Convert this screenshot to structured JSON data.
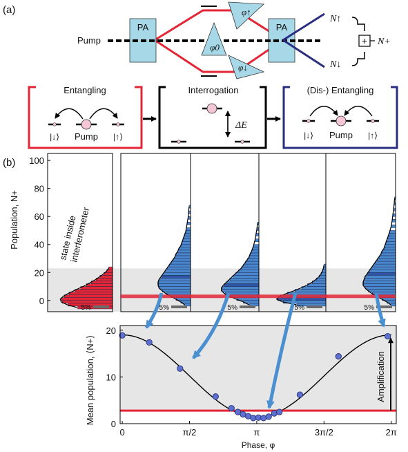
{
  "panel_a": {
    "label": "(a)",
    "pa_left": "PA",
    "pa_right": "PA",
    "pump_label": "Pump",
    "phi0": "φ0",
    "phi_up": "φ↑",
    "phi_down": "φ↓",
    "n_up": "N↑",
    "n_down": "N↓",
    "n_plus": "N+",
    "plus_sign": "+",
    "boxes": {
      "entangling": {
        "title": "Entangling",
        "left_state": "|↓⟩",
        "pump": "Pump",
        "right_state": "|↑⟩"
      },
      "interrogation": {
        "title": "Interrogation",
        "delta_e": "ΔE"
      },
      "disentangling": {
        "title": "(Dis-) Entangling",
        "left_state": "|↓⟩",
        "pump": "Pump",
        "right_state": "|↑⟩"
      }
    },
    "colors": {
      "red": "#e32636",
      "navy": "#2a2e80",
      "pa_fill": "#a6d8e8",
      "black": "#000000"
    }
  },
  "panel_b": {
    "label": "(b)",
    "scale_label": "5%",
    "annotation": [
      "state inside",
      "interferometer"
    ],
    "amplification": "Amplification",
    "colors": {
      "hist_blue": "#4a86cc",
      "hist_dark": "#2f55a4",
      "hist_red": "#e32636",
      "grey_band": "#e6e6e6",
      "arrow_blue": "#4a8fd0",
      "point": "#5d6fcf"
    }
  },
  "chart_data": [
    {
      "type": "bar",
      "orientation": "horizontal",
      "ylabel": "Population, N+",
      "ylim": [
        -8,
        105
      ],
      "yticks": [
        0,
        20,
        40,
        60,
        80,
        100
      ],
      "panels": [
        {
          "name": "state inside interferometer",
          "color": "#e32636",
          "bins": [
            {
              "n": -5,
              "p": 3.6
            },
            {
              "n": -3,
              "p": 4.6
            },
            {
              "n": -1,
              "p": 5.2
            },
            {
              "n": 1,
              "p": 5.3
            },
            {
              "n": 3,
              "p": 5.0
            },
            {
              "n": 5,
              "p": 4.5
            },
            {
              "n": 7,
              "p": 3.9
            },
            {
              "n": 9,
              "p": 3.3
            },
            {
              "n": 11,
              "p": 2.7
            },
            {
              "n": 13,
              "p": 2.2
            },
            {
              "n": 15,
              "p": 1.7
            },
            {
              "n": 17,
              "p": 1.3
            },
            {
              "n": 19,
              "p": 0.9
            },
            {
              "n": 21,
              "p": 0.6
            },
            {
              "n": 23,
              "p": 0.4
            }
          ],
          "mean": 3
        },
        {
          "name": "phase 0.1pi",
          "color": "#4a86cc",
          "bins": [
            {
              "n": -3,
              "p": 0.6
            },
            {
              "n": -1,
              "p": 1.0
            },
            {
              "n": 1,
              "p": 1.5
            },
            {
              "n": 3,
              "p": 2.0
            },
            {
              "n": 5,
              "p": 2.5
            },
            {
              "n": 7,
              "p": 2.9
            },
            {
              "n": 9,
              "p": 3.2
            },
            {
              "n": 11,
              "p": 3.3
            },
            {
              "n": 13,
              "p": 3.3
            },
            {
              "n": 15,
              "p": 3.2
            },
            {
              "n": 17,
              "p": 3.0
            },
            {
              "n": 19,
              "p": 2.8
            },
            {
              "n": 21,
              "p": 2.6
            },
            {
              "n": 23,
              "p": 2.4
            },
            {
              "n": 25,
              "p": 2.2
            },
            {
              "n": 27,
              "p": 2.0
            },
            {
              "n": 29,
              "p": 1.8
            },
            {
              "n": 31,
              "p": 1.6
            },
            {
              "n": 33,
              "p": 1.5
            },
            {
              "n": 35,
              "p": 1.3
            },
            {
              "n": 37,
              "p": 1.2
            },
            {
              "n": 39,
              "p": 1.0
            },
            {
              "n": 41,
              "p": 0.9
            },
            {
              "n": 43,
              "p": 0.8
            },
            {
              "n": 45,
              "p": 0.7
            },
            {
              "n": 47,
              "p": 0.6
            },
            {
              "n": 49,
              "p": 0.5
            },
            {
              "n": 51,
              "p": 0.45
            },
            {
              "n": 55,
              "p": 0.35
            },
            {
              "n": 59,
              "p": 0.25
            },
            {
              "n": 63,
              "p": 0.2
            },
            {
              "n": 67,
              "p": 0.15
            }
          ],
          "mean": 17
        },
        {
          "name": "phase 0.4pi",
          "color": "#4a86cc",
          "bins": [
            {
              "n": -3,
              "p": 1.0
            },
            {
              "n": -1,
              "p": 1.6
            },
            {
              "n": 1,
              "p": 2.3
            },
            {
              "n": 3,
              "p": 3.0
            },
            {
              "n": 5,
              "p": 3.5
            },
            {
              "n": 7,
              "p": 3.8
            },
            {
              "n": 9,
              "p": 3.8
            },
            {
              "n": 11,
              "p": 3.6
            },
            {
              "n": 13,
              "p": 3.3
            },
            {
              "n": 15,
              "p": 3.0
            },
            {
              "n": 17,
              "p": 2.7
            },
            {
              "n": 19,
              "p": 2.4
            },
            {
              "n": 21,
              "p": 2.1
            },
            {
              "n": 23,
              "p": 1.8
            },
            {
              "n": 25,
              "p": 1.6
            },
            {
              "n": 27,
              "p": 1.4
            },
            {
              "n": 29,
              "p": 1.2
            },
            {
              "n": 31,
              "p": 1.0
            },
            {
              "n": 33,
              "p": 0.9
            },
            {
              "n": 35,
              "p": 0.75
            },
            {
              "n": 37,
              "p": 0.65
            },
            {
              "n": 39,
              "p": 0.55
            },
            {
              "n": 43,
              "p": 0.4
            },
            {
              "n": 47,
              "p": 0.3
            },
            {
              "n": 51,
              "p": 0.2
            },
            {
              "n": 55,
              "p": 0.15
            }
          ],
          "mean": 11
        },
        {
          "name": "phase 0.97pi",
          "color": "#4a86cc",
          "bins": [
            {
              "n": -3,
              "p": 3.0
            },
            {
              "n": -1,
              "p": 4.4
            },
            {
              "n": 1,
              "p": 5.0
            },
            {
              "n": 3,
              "p": 4.7
            },
            {
              "n": 5,
              "p": 4.0
            },
            {
              "n": 7,
              "p": 3.2
            },
            {
              "n": 9,
              "p": 2.5
            },
            {
              "n": 11,
              "p": 1.9
            },
            {
              "n": 13,
              "p": 1.4
            },
            {
              "n": 15,
              "p": 1.0
            },
            {
              "n": 17,
              "p": 0.7
            },
            {
              "n": 19,
              "p": 0.5
            },
            {
              "n": 21,
              "p": 0.35
            },
            {
              "n": 23,
              "p": 0.25
            },
            {
              "n": 25,
              "p": 0.2
            }
          ],
          "mean": 1
        },
        {
          "name": "phase 2pi",
          "color": "#4a86cc",
          "bins": [
            {
              "n": -3,
              "p": 0.5
            },
            {
              "n": -1,
              "p": 0.9
            },
            {
              "n": 1,
              "p": 1.4
            },
            {
              "n": 3,
              "p": 1.9
            },
            {
              "n": 5,
              "p": 2.4
            },
            {
              "n": 7,
              "p": 2.8
            },
            {
              "n": 9,
              "p": 3.1
            },
            {
              "n": 11,
              "p": 3.3
            },
            {
              "n": 13,
              "p": 3.3
            },
            {
              "n": 15,
              "p": 3.2
            },
            {
              "n": 17,
              "p": 3.1
            },
            {
              "n": 19,
              "p": 2.9
            },
            {
              "n": 21,
              "p": 2.7
            },
            {
              "n": 23,
              "p": 2.5
            },
            {
              "n": 25,
              "p": 2.3
            },
            {
              "n": 27,
              "p": 2.1
            },
            {
              "n": 29,
              "p": 1.9
            },
            {
              "n": 31,
              "p": 1.7
            },
            {
              "n": 33,
              "p": 1.5
            },
            {
              "n": 35,
              "p": 1.4
            },
            {
              "n": 37,
              "p": 1.2
            },
            {
              "n": 39,
              "p": 1.1
            },
            {
              "n": 41,
              "p": 1.0
            },
            {
              "n": 43,
              "p": 0.9
            },
            {
              "n": 45,
              "p": 0.8
            },
            {
              "n": 47,
              "p": 0.7
            },
            {
              "n": 49,
              "p": 0.6
            },
            {
              "n": 53,
              "p": 0.45
            },
            {
              "n": 57,
              "p": 0.35
            },
            {
              "n": 61,
              "p": 0.28
            },
            {
              "n": 65,
              "p": 0.2
            },
            {
              "n": 69,
              "p": 0.15
            },
            {
              "n": 73,
              "p": 0.1
            }
          ],
          "mean": 19
        }
      ],
      "grey_band": [
        0,
        23
      ],
      "red_line": 3
    },
    {
      "type": "scatter",
      "xlabel": "Phase, φ",
      "ylabel": "Mean population, ⟨N+⟩",
      "xlim": [
        -0.05,
        6.4
      ],
      "ylim": [
        0,
        21
      ],
      "xticks": [
        {
          "value": 0,
          "label": "0"
        },
        {
          "value": 1.5708,
          "label": "π/2"
        },
        {
          "value": 3.1416,
          "label": "π"
        },
        {
          "value": 4.7124,
          "label": "3π/2"
        },
        {
          "value": 6.2832,
          "label": "2π"
        }
      ],
      "yticks": [
        0,
        10,
        20
      ],
      "x": [
        0.0,
        0.63,
        1.35,
        2.18,
        2.55,
        2.7,
        2.82,
        2.94,
        3.06,
        3.18,
        3.3,
        3.42,
        3.55,
        3.67,
        4.15,
        5.05,
        6.2
      ],
      "y": [
        18.9,
        17.4,
        11.8,
        5.8,
        3.3,
        2.5,
        2.0,
        1.6,
        1.2,
        1.3,
        1.2,
        1.5,
        2.2,
        2.5,
        6.2,
        14.4,
        18.7
      ],
      "fit": {
        "offset": 10.2,
        "amplitude": 8.8
      },
      "red_line": 2.8,
      "grey_band": [
        0,
        21
      ]
    }
  ]
}
